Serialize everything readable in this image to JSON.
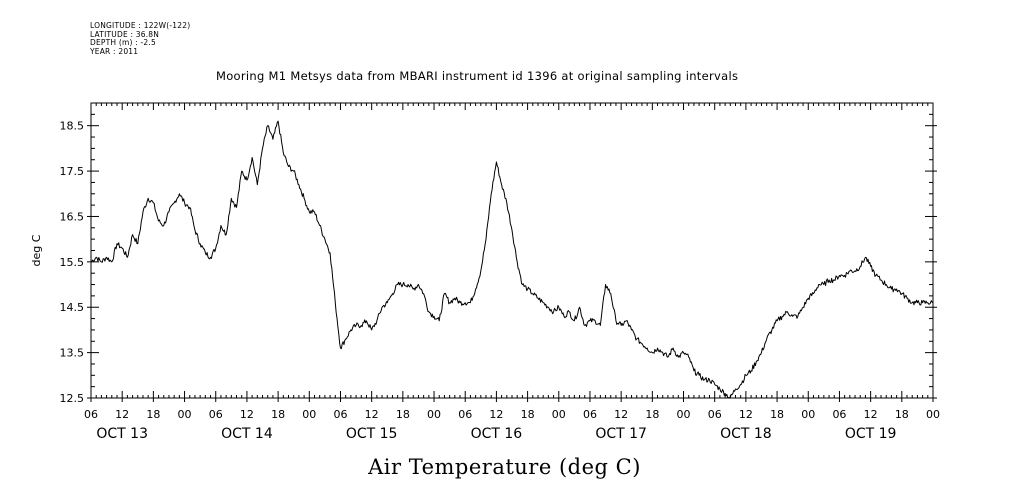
{
  "metadata": {
    "longitude": "LONGITUDE : 122W(-122)",
    "latitude": "LATITUDE : 36.8N",
    "depth": "DEPTH (m) : -2.5",
    "year": "YEAR : 2011"
  },
  "chart_data": {
    "type": "line",
    "title": "Mooring M1 Metsys data from MBARI instrument id 1396 at original sampling intervals",
    "xlabel": "Air Temperature (deg C)",
    "ylabel": "deg C",
    "ylim": [
      12.5,
      19.0
    ],
    "yticks": [
      "12.5",
      "13.5",
      "14.5",
      "15.5",
      "16.5",
      "17.5",
      "18.5"
    ],
    "xlim_hours": [
      6,
      168
    ],
    "x_tick_labels": [
      "06",
      "12",
      "18",
      "00",
      "06",
      "12",
      "18",
      "00",
      "06",
      "12",
      "18",
      "00",
      "06",
      "12",
      "18",
      "00",
      "06",
      "12",
      "18",
      "00",
      "06",
      "12",
      "18",
      "00",
      "06",
      "12",
      "18",
      "00"
    ],
    "day_labels": [
      {
        "label": "OCT 13",
        "hour": 12
      },
      {
        "label": "OCT 14",
        "hour": 36
      },
      {
        "label": "OCT 15",
        "hour": 60
      },
      {
        "label": "OCT 16",
        "hour": 84
      },
      {
        "label": "OCT 17",
        "hour": 108
      },
      {
        "label": "OCT 18",
        "hour": 132
      },
      {
        "label": "OCT 19",
        "hour": 156
      }
    ],
    "series": [
      {
        "x": [
          6,
          7,
          8,
          9,
          10,
          11,
          12,
          13,
          14,
          15,
          16,
          17,
          18,
          19,
          20,
          21,
          22,
          23,
          24,
          25,
          26,
          27,
          28,
          29,
          30,
          31,
          32,
          33,
          34,
          35,
          36,
          37,
          38,
          39,
          40,
          41,
          42,
          43,
          44,
          45,
          46,
          47,
          48,
          49,
          50,
          51,
          52,
          53,
          54,
          55,
          56,
          57,
          58,
          59,
          60,
          61,
          62,
          63,
          64,
          65,
          66,
          67,
          68,
          69,
          70,
          71,
          72,
          73,
          74,
          75,
          76,
          77,
          78,
          79,
          80,
          81,
          82,
          83,
          84,
          85,
          86,
          87,
          88,
          89,
          90,
          91,
          92,
          93,
          94,
          95,
          96,
          97,
          98,
          99,
          100,
          101,
          102,
          103,
          104,
          105,
          106,
          107,
          108,
          109,
          110,
          111,
          112,
          113,
          114,
          115,
          116,
          117,
          118,
          119,
          120,
          121,
          122,
          123,
          124,
          125,
          126,
          127,
          128,
          129,
          130,
          131,
          132,
          133,
          134,
          135,
          136,
          137,
          138,
          139,
          140,
          141,
          142,
          143,
          144,
          145,
          146,
          147,
          148,
          149,
          150,
          151,
          152,
          153,
          154,
          155,
          156,
          157,
          158,
          159,
          160,
          161,
          162,
          163,
          164,
          165,
          166,
          167,
          168
        ],
        "y": [
          15.5,
          15.6,
          15.5,
          15.6,
          15.5,
          15.9,
          15.8,
          15.6,
          16.1,
          15.9,
          16.6,
          16.9,
          16.8,
          16.4,
          16.3,
          16.6,
          16.8,
          17.0,
          16.8,
          16.7,
          16.2,
          15.9,
          15.7,
          15.6,
          15.8,
          16.3,
          16.1,
          16.9,
          16.7,
          17.5,
          17.3,
          17.8,
          17.2,
          18.0,
          18.5,
          18.2,
          18.6,
          17.9,
          17.6,
          17.5,
          17.2,
          16.9,
          16.6,
          16.6,
          16.3,
          16.0,
          15.7,
          14.6,
          13.6,
          13.8,
          14.0,
          14.1,
          14.1,
          14.2,
          14.0,
          14.2,
          14.5,
          14.6,
          14.8,
          15.0,
          15.0,
          15.0,
          14.9,
          15.0,
          14.8,
          14.4,
          14.3,
          14.2,
          14.8,
          14.6,
          14.7,
          14.6,
          14.6,
          14.6,
          14.9,
          15.3,
          16.0,
          17.0,
          17.7,
          17.2,
          16.8,
          16.2,
          15.5,
          15.0,
          14.9,
          14.8,
          14.7,
          14.6,
          14.5,
          14.4,
          14.5,
          14.3,
          14.4,
          14.2,
          14.5,
          14.1,
          14.2,
          14.2,
          14.1,
          15.0,
          14.8,
          14.2,
          14.1,
          14.2,
          14.0,
          13.8,
          13.7,
          13.6,
          13.5,
          13.6,
          13.5,
          13.4,
          13.6,
          13.4,
          13.5,
          13.4,
          13.1,
          13.0,
          12.9,
          12.9,
          12.8,
          12.7,
          12.6,
          12.5,
          12.7,
          12.8,
          13.0,
          13.1,
          13.3,
          13.5,
          13.8,
          14.0,
          14.2,
          14.3,
          14.4,
          14.3,
          14.3,
          14.5,
          14.7,
          14.8,
          15.0,
          15.0,
          15.1,
          15.1,
          15.2,
          15.2,
          15.3,
          15.3,
          15.4,
          15.6,
          15.4,
          15.2,
          15.1,
          15.0,
          14.9,
          14.9,
          14.8,
          14.7,
          14.6,
          14.6,
          14.6,
          14.6,
          14.6
        ]
      }
    ]
  }
}
